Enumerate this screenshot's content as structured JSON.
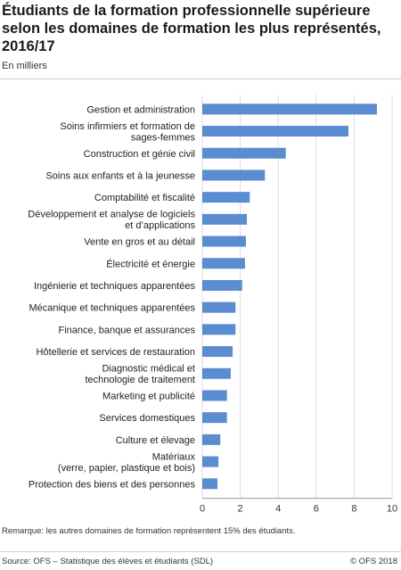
{
  "title": "Étudiants de la formation professionnelle supérieure selon les domaines de formation les plus représentés, 2016/17",
  "subtitle": "En milliers",
  "remark": "Remarque: les autres domaines de formation représentent 15% des étudiants.",
  "source": "Source: OFS – Statistique des élèves et étudiants (SDL)",
  "copyright": "© OFS 2018",
  "chart_data": {
    "type": "bar",
    "orientation": "horizontal",
    "color": "#5b8bd0",
    "xlim": [
      0,
      10
    ],
    "ticks": [
      0,
      2,
      4,
      6,
      8,
      10
    ],
    "grid": true,
    "categories": [
      [
        "Gestion et administration"
      ],
      [
        "Soins infirmiers et formation de",
        "sages-femmes"
      ],
      [
        "Construction et génie civil"
      ],
      [
        "Soins aux enfants et à la jeunesse"
      ],
      [
        "Comptabilité et fiscalité"
      ],
      [
        "Développement et analyse de logiciels",
        "et d’applications"
      ],
      [
        "Vente en gros et au détail"
      ],
      [
        "Électricité et énergie"
      ],
      [
        "Ingénierie et techniques apparentées"
      ],
      [
        "Mécanique et techniques apparentées"
      ],
      [
        "Finance, banque et assurances"
      ],
      [
        "Hôtellerie et services de restauration"
      ],
      [
        "Diagnostic médical et",
        "technologie de traitement"
      ],
      [
        "Marketing et publicité"
      ],
      [
        "Services domestiques"
      ],
      [
        "Culture et élevage"
      ],
      [
        "Matériaux",
        "(verre, papier, plastique et bois)"
      ],
      [
        "Protection des biens et des personnes"
      ]
    ],
    "values": [
      9.2,
      7.7,
      4.4,
      3.3,
      2.5,
      2.35,
      2.3,
      2.25,
      2.1,
      1.75,
      1.75,
      1.6,
      1.5,
      1.3,
      1.3,
      0.95,
      0.85,
      0.8
    ]
  }
}
